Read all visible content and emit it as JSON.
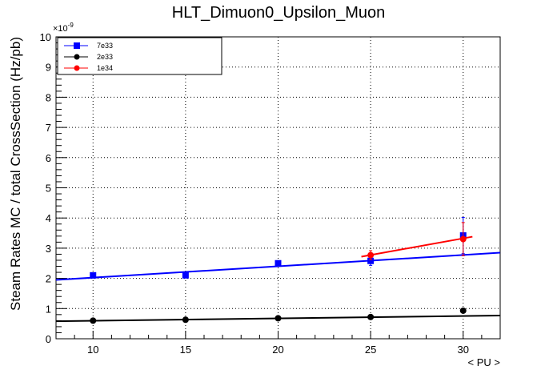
{
  "chart_data": {
    "type": "scatter",
    "title": "HLT_Dimuon0_Upsilon_Muon",
    "xlabel": "< PU >",
    "ylabel": "Steam Rates MC / total CrossSection (Hz/pb)",
    "y_exponent_label": "×10",
    "y_exponent": "-9",
    "xlim": [
      8,
      32
    ],
    "ylim": [
      0,
      10
    ],
    "x_ticks": [
      10,
      15,
      20,
      25,
      30
    ],
    "y_ticks": [
      0,
      1,
      2,
      3,
      4,
      5,
      6,
      7,
      8,
      9,
      10
    ],
    "grid": true,
    "legend_position": "top-left",
    "series": [
      {
        "name": "7e33",
        "color": "#0000ff",
        "marker": "square",
        "x": [
          10,
          15,
          20,
          25,
          30
        ],
        "y": [
          2.1,
          2.1,
          2.5,
          2.58,
          3.42
        ],
        "yerr": [
          0.05,
          0.05,
          0.06,
          0.15,
          0.6
        ],
        "fit": {
          "x": [
            8,
            32
          ],
          "y": [
            1.95,
            2.85
          ]
        }
      },
      {
        "name": "2e33",
        "color": "#000000",
        "marker": "circle",
        "x": [
          10,
          15,
          20,
          25,
          30
        ],
        "y": [
          0.6,
          0.63,
          0.68,
          0.72,
          0.93
        ],
        "yerr": [
          0.02,
          0.02,
          0.02,
          0.03,
          0.05
        ],
        "fit": {
          "x": [
            8,
            32
          ],
          "y": [
            0.58,
            0.77
          ]
        }
      },
      {
        "name": "1e34",
        "color": "#ff0000",
        "marker": "circle",
        "x": [
          25,
          30
        ],
        "y": [
          2.77,
          3.3
        ],
        "yerr": [
          0.15,
          0.55
        ],
        "fit": {
          "x": [
            24.5,
            30.5
          ],
          "y": [
            2.72,
            3.38
          ]
        }
      }
    ]
  }
}
